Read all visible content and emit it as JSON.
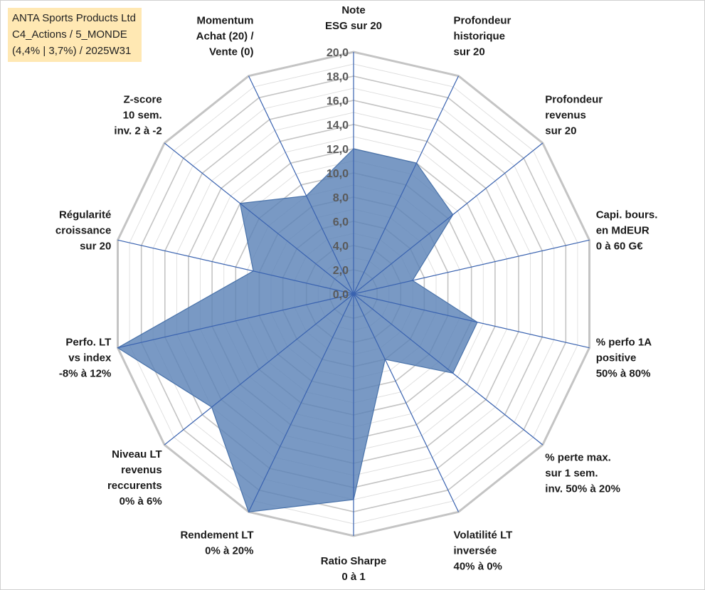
{
  "info_box": {
    "line1": "ANTA Sports Products Ltd",
    "line2": "C4_Actions / 5_MONDE",
    "line3": "(4,4% | 3,7%) / 2025W31"
  },
  "chart_data": {
    "type": "radar",
    "title": "",
    "rmin": 0,
    "rmax": 20,
    "ticks": [
      "0,0",
      "2,0",
      "4,0",
      "6,0",
      "8,0",
      "10,0",
      "12,0",
      "14,0",
      "16,0",
      "18,0",
      "20,0"
    ],
    "tick_values": [
      0,
      2,
      4,
      6,
      8,
      10,
      12,
      14,
      16,
      18,
      20
    ],
    "minor_step": 1,
    "axes": [
      {
        "label": [
          "Note",
          "ESG sur 20"
        ],
        "value": 12.0
      },
      {
        "label": [
          "Profondeur",
          "historique",
          "sur 20"
        ],
        "value": 12.0
      },
      {
        "label": [
          "Profondeur",
          "revenus",
          "sur 20"
        ],
        "value": 10.5
      },
      {
        "label": [
          "Capi. bours.",
          "en MdEUR",
          "0 à 60 G€"
        ],
        "value": 5.0
      },
      {
        "label": [
          "% perfo 1A",
          "positive",
          "50% à 80%"
        ],
        "value": 10.5
      },
      {
        "label": [
          "% perte max.",
          "sur 1 sem.",
          "inv. 50% à 20%"
        ],
        "value": 10.5
      },
      {
        "label": [
          "Volatilité LT",
          "inversée",
          "40% à 0%"
        ],
        "value": 6.0
      },
      {
        "label": [
          "Ratio Sharpe",
          "0 à 1"
        ],
        "value": 17.0
      },
      {
        "label": [
          "Rendement LT",
          "0% à 20%"
        ],
        "value": 20.0
      },
      {
        "label": [
          "Niveau LT",
          "revenus",
          "reccurents",
          "0% à 6%"
        ],
        "value": 15.0
      },
      {
        "label": [
          "Perfo. LT",
          "vs index",
          "-8% à 12%"
        ],
        "value": 20.0
      },
      {
        "label": [
          "Régularité",
          "croissance",
          "sur 20"
        ],
        "value": 8.5
      },
      {
        "label": [
          "Z-score",
          "10 sem.",
          "inv. 2 à -2"
        ],
        "value": 12.0
      },
      {
        "label": [
          "Momentum",
          "Achat (20) /",
          "Vente (0)"
        ],
        "value": 9.0
      }
    ],
    "colors": {
      "fill": "#5b83b7",
      "fill_opacity": "0.82",
      "spoke": "#3a63b0",
      "grid_major": "#c4c4c4",
      "grid_minor": "#dedede",
      "text": "#1a1a1a",
      "tick_text": "#5a5a5a"
    }
  }
}
